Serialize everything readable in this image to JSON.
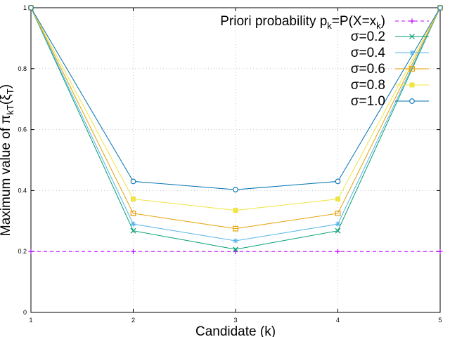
{
  "chart_data": {
    "type": "line",
    "xlabel": "Candidate (k)",
    "ylabel": "Maximum value of π_kT(ξ_T)",
    "xlim": [
      1,
      5
    ],
    "ylim": [
      0,
      1
    ],
    "x": [
      1,
      2,
      3,
      4,
      5
    ],
    "xticks": [
      "1",
      "2",
      "3",
      "4",
      "5"
    ],
    "yticks": [
      "0",
      "0.2",
      "0.4",
      "0.6",
      "0.8",
      "1"
    ],
    "grid": true,
    "legend_position": "top-right",
    "series": [
      {
        "name": "Priori probability p_k=P(X=x_k)",
        "color": "#c000ff",
        "dashed": true,
        "marker": "plus",
        "values": [
          0.2,
          0.2,
          0.2,
          0.2,
          0.2
        ]
      },
      {
        "name": "σ=0.2",
        "color": "#009e73",
        "dashed": false,
        "marker": "x",
        "values": [
          1.0,
          0.268,
          0.207,
          0.268,
          1.0
        ]
      },
      {
        "name": "σ=0.4",
        "color": "#56b4e9",
        "dashed": false,
        "marker": "star",
        "values": [
          1.0,
          0.29,
          0.235,
          0.29,
          1.0
        ]
      },
      {
        "name": "σ=0.6",
        "color": "#e69f00",
        "dashed": false,
        "marker": "square-open",
        "values": [
          1.0,
          0.325,
          0.275,
          0.325,
          1.0
        ]
      },
      {
        "name": "σ=0.8",
        "color": "#f0e442",
        "dashed": false,
        "marker": "square-filled",
        "values": [
          1.0,
          0.372,
          0.335,
          0.372,
          1.0
        ]
      },
      {
        "name": "σ=1.0",
        "color": "#0072b2",
        "dashed": false,
        "marker": "circle-open",
        "values": [
          1.0,
          0.43,
          0.403,
          0.43,
          1.0
        ]
      }
    ]
  }
}
